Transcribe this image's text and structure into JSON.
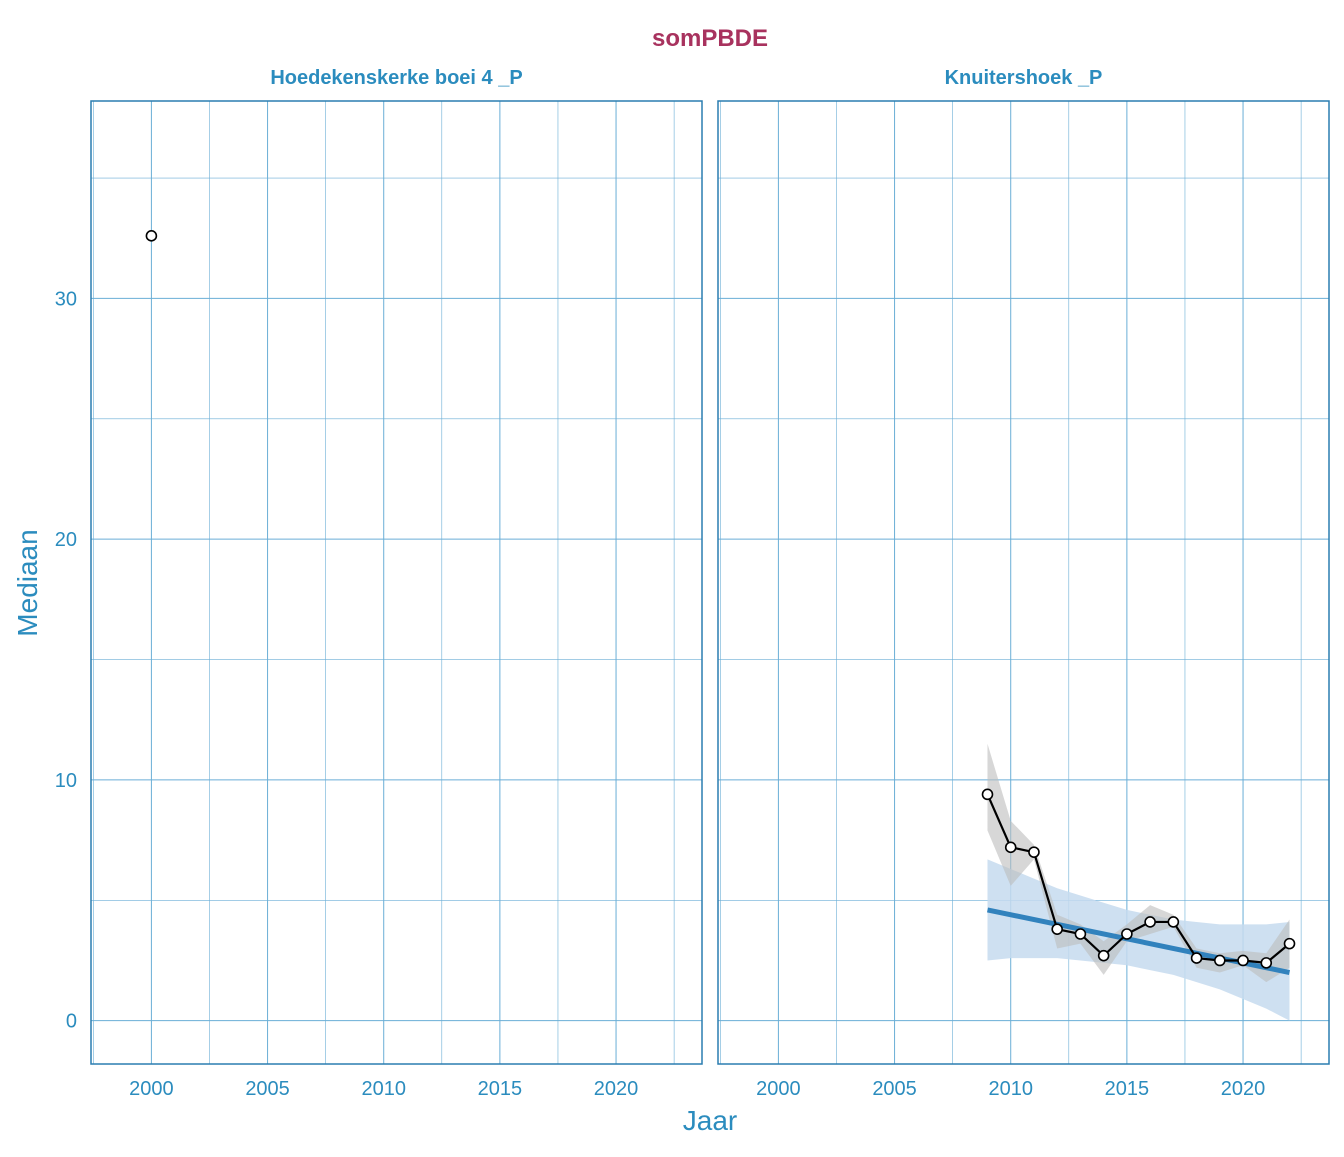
{
  "chart_data": {
    "type": "line",
    "title": "somPBDE",
    "xlabel": "Jaar",
    "ylabel": "Mediaan",
    "xlim": [
      1997.4,
      2023.7
    ],
    "ylim": [
      -1.8,
      38.2
    ],
    "x_ticks": [
      2000,
      2005,
      2010,
      2015,
      2020
    ],
    "y_ticks": [
      0,
      10,
      20,
      30
    ],
    "grid": true,
    "colors": {
      "title": "#a8325e",
      "axis_text": "#2b8cbe",
      "grid": "#6aaed6",
      "panel_border": "#2a7db0",
      "trend_line": "#3182bd",
      "trend_band": "#c6dbef",
      "smooth_band": "#bdbdbd",
      "data_line": "#000000"
    },
    "panels": [
      {
        "title": "Hoedekenskerke boei 4 _P",
        "series": [
          {
            "x": [
              2000
            ],
            "y": [
              32.6
            ]
          }
        ]
      },
      {
        "title": "Knuitershoek _P",
        "series": [
          {
            "x": [
              2009,
              2010,
              2011,
              2012,
              2013,
              2014,
              2015,
              2016,
              2017,
              2018,
              2019,
              2020,
              2021,
              2022
            ],
            "y": [
              9.4,
              7.2,
              7.0,
              3.8,
              3.6,
              2.7,
              3.6,
              4.1,
              4.1,
              2.6,
              2.5,
              2.5,
              2.4,
              3.2
            ]
          }
        ],
        "smooth_band": {
          "x": [
            2009,
            2010,
            2011,
            2012,
            2013,
            2014,
            2015,
            2016,
            2017,
            2018,
            2019,
            2020,
            2021,
            2022
          ],
          "lower": [
            7.9,
            5.6,
            6.7,
            3.0,
            3.2,
            1.9,
            3.3,
            3.6,
            3.9,
            2.2,
            2.0,
            2.3,
            1.6,
            2.2
          ],
          "upper": [
            11.5,
            8.3,
            7.3,
            4.4,
            4.0,
            3.3,
            4.0,
            4.8,
            4.4,
            3.0,
            2.8,
            2.9,
            2.8,
            4.2
          ]
        },
        "trend": {
          "x": [
            2009,
            2022
          ],
          "y": [
            4.6,
            2.0
          ]
        },
        "trend_band": {
          "x": [
            2009,
            2010,
            2011,
            2012,
            2013,
            2014,
            2015,
            2016,
            2017,
            2018,
            2019,
            2020,
            2021,
            2022
          ],
          "lower": [
            2.5,
            2.6,
            2.6,
            2.6,
            2.5,
            2.4,
            2.3,
            2.1,
            1.9,
            1.6,
            1.3,
            0.9,
            0.5,
            0.0
          ],
          "upper": [
            6.7,
            6.3,
            5.9,
            5.5,
            5.2,
            4.9,
            4.6,
            4.4,
            4.2,
            4.1,
            4.0,
            4.0,
            4.0,
            4.1
          ]
        }
      }
    ]
  }
}
